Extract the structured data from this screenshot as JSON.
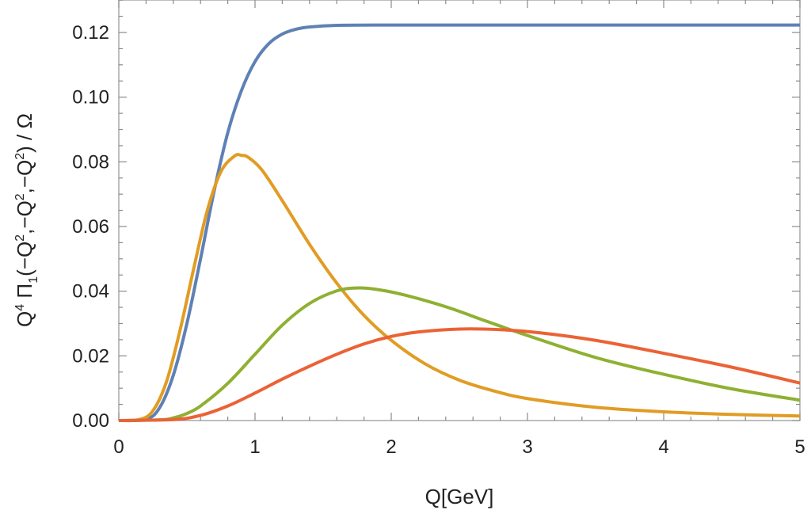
{
  "chart_data": {
    "type": "line",
    "title": "",
    "xlabel": "Q[GeV]",
    "ylabel": {
      "parts": [
        "Q",
        "4",
        " Π",
        "1",
        "(−Q",
        "2",
        ",−Q",
        "2",
        ",−Q",
        "2",
        ") / Ω"
      ],
      "text": "Q4 Π1(−Q2,−Q2,−Q2) / Ω"
    },
    "xlim": [
      0,
      5
    ],
    "ylim": [
      0,
      0.13
    ],
    "x_ticks": [
      0,
      1,
      2,
      3,
      4,
      5
    ],
    "x_tick_labels": [
      "0",
      "1",
      "2",
      "3",
      "4",
      "5"
    ],
    "y_ticks": [
      0,
      0.02,
      0.04,
      0.06,
      0.08,
      0.1,
      0.12
    ],
    "y_tick_labels": [
      "0.00",
      "0.02",
      "0.04",
      "0.06",
      "0.08",
      "0.10",
      "0.12"
    ],
    "grid": false,
    "legend": "none",
    "series": [
      {
        "name": "blue",
        "color": "#5E81B5",
        "x": [
          0,
          0.2,
          0.3,
          0.4,
          0.5,
          0.6,
          0.7,
          0.8,
          0.9,
          1.0,
          1.1,
          1.2,
          1.3,
          1.4,
          1.6,
          2.0,
          3.0,
          4.0,
          5.0
        ],
        "y": [
          0,
          0.0004,
          0.004,
          0.014,
          0.03,
          0.05,
          0.071,
          0.089,
          0.102,
          0.111,
          0.1165,
          0.1195,
          0.121,
          0.1217,
          0.1222,
          0.1223,
          0.1223,
          0.1223,
          0.1223
        ]
      },
      {
        "name": "orange",
        "color": "#E19C24",
        "x": [
          0,
          0.15,
          0.25,
          0.35,
          0.45,
          0.55,
          0.65,
          0.75,
          0.85,
          0.9,
          0.95,
          1.05,
          1.2,
          1.4,
          1.6,
          1.8,
          2.0,
          2.25,
          2.5,
          2.75,
          3.0,
          3.5,
          4.0,
          4.5,
          5.0
        ],
        "y": [
          0,
          0.0003,
          0.003,
          0.012,
          0.028,
          0.047,
          0.065,
          0.077,
          0.0818,
          0.082,
          0.0814,
          0.0775,
          0.068,
          0.0545,
          0.0425,
          0.0325,
          0.0248,
          0.0175,
          0.0125,
          0.0092,
          0.0068,
          0.0041,
          0.0027,
          0.0019,
          0.0014
        ]
      },
      {
        "name": "green",
        "color": "#8FB032",
        "x": [
          0,
          0.3,
          0.4,
          0.5,
          0.6,
          0.8,
          1.0,
          1.2,
          1.4,
          1.6,
          1.75,
          1.9,
          2.1,
          2.4,
          2.7,
          3.0,
          3.5,
          4.0,
          4.5,
          5.0
        ],
        "y": [
          0,
          0.0002,
          0.0008,
          0.0022,
          0.0045,
          0.0115,
          0.0205,
          0.0295,
          0.0362,
          0.0401,
          0.041,
          0.0405,
          0.0388,
          0.0352,
          0.0307,
          0.0263,
          0.0195,
          0.0143,
          0.0098,
          0.0063
        ]
      },
      {
        "name": "red",
        "color": "#EB6235",
        "x": [
          0,
          0.4,
          0.6,
          0.8,
          1.0,
          1.2,
          1.4,
          1.6,
          1.8,
          2.0,
          2.2,
          2.5,
          2.8,
          3.1,
          3.5,
          4.0,
          4.5,
          5.0
        ],
        "y": [
          0,
          0.0003,
          0.0016,
          0.0045,
          0.0085,
          0.0128,
          0.0168,
          0.0205,
          0.0237,
          0.026,
          0.0274,
          0.0283,
          0.0281,
          0.0271,
          0.0248,
          0.0208,
          0.0165,
          0.0116
        ]
      }
    ]
  }
}
